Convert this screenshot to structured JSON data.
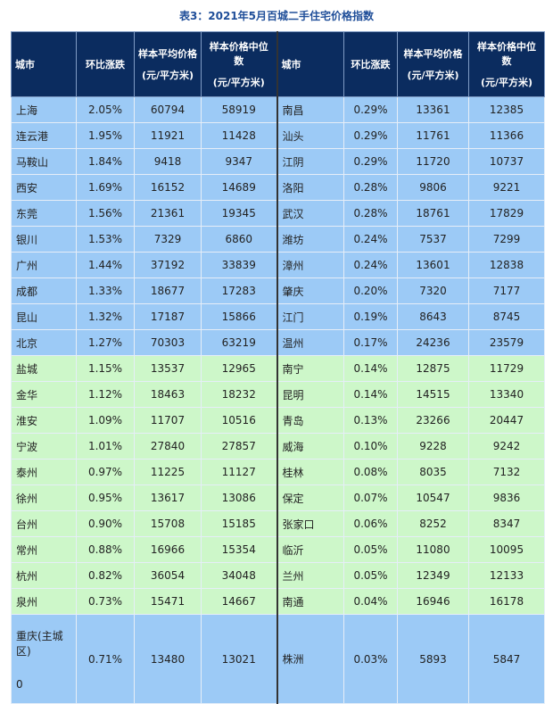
{
  "title": "表3：2021年5月百城二手住宅价格指数",
  "table": {
    "headers": [
      {
        "label": "城市"
      },
      {
        "label": "环比涨跌"
      },
      {
        "label": "样本平均价格",
        "unit": "(元/平方米)"
      },
      {
        "label": "样本价格中位数",
        "unit": "(元/平方米)"
      },
      {
        "label": "城市"
      },
      {
        "label": "环比涨跌"
      },
      {
        "label": "样本平均价格",
        "unit": "(元/平方米)"
      },
      {
        "label": "样本价格中位数",
        "unit": "(元/平方米)"
      }
    ],
    "rows": [
      [
        "上海",
        "2.05%",
        60794,
        58919,
        "南昌",
        "0.29%",
        13361,
        12385
      ],
      [
        "连云港",
        "1.95%",
        11921,
        11428,
        "汕头",
        "0.29%",
        11761,
        11366
      ],
      [
        "马鞍山",
        "1.84%",
        9418,
        9347,
        "江阴",
        "0.29%",
        11720,
        10737
      ],
      [
        "西安",
        "1.69%",
        16152,
        14689,
        "洛阳",
        "0.28%",
        9806,
        9221
      ],
      [
        "东莞",
        "1.56%",
        21361,
        19345,
        "武汉",
        "0.28%",
        18761,
        17829
      ],
      [
        "银川",
        "1.53%",
        7329,
        6860,
        "潍坊",
        "0.24%",
        7537,
        7299
      ],
      [
        "广州",
        "1.44%",
        37192,
        33839,
        "漳州",
        "0.24%",
        13601,
        12838
      ],
      [
        "成都",
        "1.33%",
        18677,
        17283,
        "肇庆",
        "0.20%",
        7320,
        7177
      ],
      [
        "昆山",
        "1.32%",
        17187,
        15866,
        "江门",
        "0.19%",
        8643,
        8745
      ],
      [
        "北京",
        "1.27%",
        70303,
        63219,
        "温州",
        "0.17%",
        24236,
        23579
      ],
      [
        "盐城",
        "1.15%",
        13537,
        12965,
        "南宁",
        "0.14%",
        12875,
        11729
      ],
      [
        "金华",
        "1.12%",
        18463,
        18232,
        "昆明",
        "0.14%",
        14515,
        13340
      ],
      [
        "淮安",
        "1.09%",
        11707,
        10516,
        "青岛",
        "0.13%",
        23266,
        20447
      ],
      [
        "宁波",
        "1.01%",
        27840,
        27857,
        "威海",
        "0.10%",
        9228,
        9242
      ],
      [
        "泰州",
        "0.97%",
        11225,
        11127,
        "桂林",
        "0.08%",
        8035,
        7132
      ],
      [
        "徐州",
        "0.95%",
        13617,
        13086,
        "保定",
        "0.07%",
        10547,
        9836
      ],
      [
        "台州",
        "0.90%",
        15708,
        15185,
        "张家口",
        "0.06%",
        8252,
        8347
      ],
      [
        "常州",
        "0.88%",
        16966,
        15354,
        "临沂",
        "0.05%",
        11080,
        10095
      ],
      [
        "杭州",
        "0.82%",
        36054,
        34048,
        "兰州",
        "0.05%",
        12349,
        12133
      ],
      [
        "泉州",
        "0.73%",
        15471,
        14667,
        "南通",
        "0.04%",
        16946,
        16178
      ],
      [
        [
          "重庆(主城区)",
          "0"
        ],
        "0.71%",
        13480,
        13021,
        "株洲",
        "0.03%",
        5893,
        5847
      ]
    ]
  }
}
